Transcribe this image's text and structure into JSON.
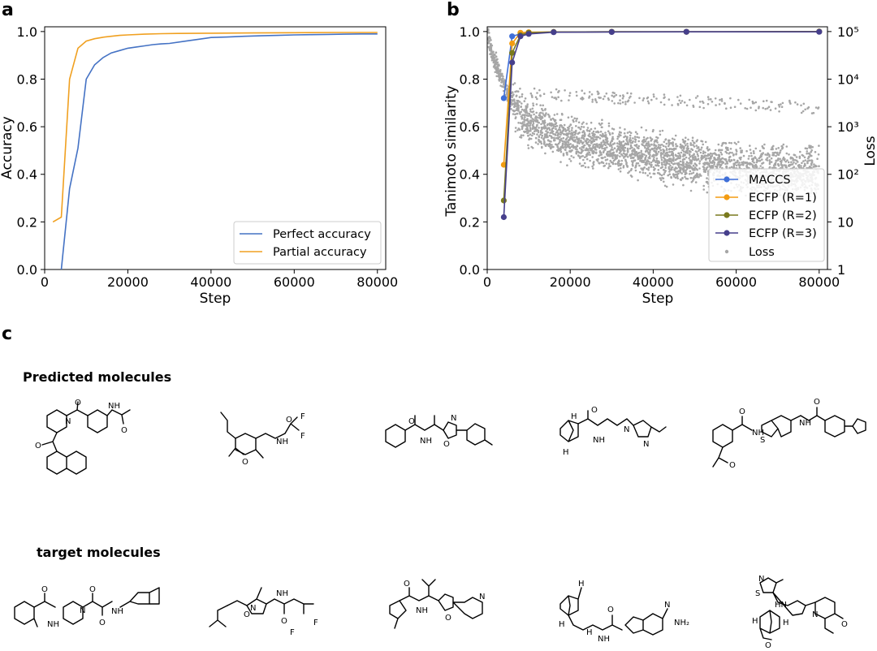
{
  "panel_labels": {
    "a": "a",
    "b": "b",
    "c": "c"
  },
  "chart_data": [
    {
      "type": "line",
      "xlabel": "Step",
      "ylabel": "Accuracy",
      "xlim": [
        0,
        82000
      ],
      "ylim": [
        0,
        1.02
      ],
      "xticks": [
        0,
        20000,
        40000,
        60000,
        80000
      ],
      "yticks": [
        0.0,
        0.2,
        0.4,
        0.6,
        0.8,
        1.0
      ],
      "xtick_labels": [
        "0",
        "20000",
        "40000",
        "60000",
        "80000"
      ],
      "ytick_labels": [
        "0.0",
        "0.2",
        "0.4",
        "0.6",
        "0.8",
        "1.0"
      ],
      "grid": false,
      "legend_position": "bottom-right",
      "series": [
        {
          "name": "Perfect accuracy",
          "color": "#4472c4",
          "x": [
            4000,
            6000,
            8000,
            10000,
            12000,
            14000,
            16000,
            18000,
            20000,
            22000,
            24000,
            26000,
            28000,
            30000,
            34000,
            38000,
            40000,
            44000,
            48000,
            52000,
            56000,
            60000,
            64000,
            68000,
            72000,
            76000,
            80000
          ],
          "y": [
            0.0,
            0.34,
            0.51,
            0.8,
            0.86,
            0.89,
            0.91,
            0.92,
            0.93,
            0.935,
            0.94,
            0.945,
            0.948,
            0.95,
            0.96,
            0.97,
            0.975,
            0.977,
            0.98,
            0.982,
            0.984,
            0.986,
            0.987,
            0.988,
            0.989,
            0.99,
            0.99
          ]
        },
        {
          "name": "Partial accuracy",
          "color": "#f0a020",
          "x": [
            2000,
            4000,
            6000,
            8000,
            10000,
            12000,
            14000,
            16000,
            18000,
            20000,
            24000,
            28000,
            32000,
            40000,
            50000,
            60000,
            70000,
            80000
          ],
          "y": [
            0.2,
            0.22,
            0.8,
            0.93,
            0.96,
            0.97,
            0.976,
            0.98,
            0.984,
            0.986,
            0.989,
            0.991,
            0.992,
            0.993,
            0.994,
            0.995,
            0.996,
            0.996
          ]
        }
      ]
    },
    {
      "type": "line",
      "xlabel": "Step",
      "ylabel": "Tanimoto similarity",
      "y2label": "Loss",
      "xlim": [
        0,
        82000
      ],
      "ylim": [
        0,
        1.02
      ],
      "y2_scale": "log",
      "y2lim": [
        1,
        100000
      ],
      "xticks": [
        0,
        20000,
        40000,
        60000,
        80000
      ],
      "yticks": [
        0.0,
        0.2,
        0.4,
        0.6,
        0.8,
        1.0
      ],
      "xtick_labels": [
        "0",
        "20000",
        "40000",
        "60000",
        "80000"
      ],
      "ytick_labels": [
        "0.0",
        "0.2",
        "0.4",
        "0.6",
        "0.8",
        "1.0"
      ],
      "y2ticks": [
        1,
        10,
        100,
        1000,
        10000,
        100000
      ],
      "y2tick_labels": [
        "1",
        "10",
        "10²",
        "10³",
        "10⁴",
        "10⁵"
      ],
      "grid": false,
      "legend_position": "lower-right",
      "series": [
        {
          "name": "MACCS",
          "color": "#3f6fd8",
          "x": [
            4000,
            6000,
            8000,
            10000,
            16000,
            30000,
            48000,
            80000
          ],
          "y": [
            0.72,
            0.98,
            0.99,
            0.995,
            0.998,
            0.999,
            0.999,
            1.0
          ]
        },
        {
          "name": "ECFP (R=1)",
          "color": "#f39c12",
          "x": [
            4000,
            6000,
            8000,
            10000,
            16000,
            30000,
            48000,
            80000
          ],
          "y": [
            0.44,
            0.95,
            0.995,
            0.997,
            0.998,
            0.999,
            0.999,
            1.0
          ]
        },
        {
          "name": "ECFP (R=2)",
          "color": "#7a7a1e",
          "x": [
            4000,
            6000,
            8000,
            10000,
            16000,
            30000,
            48000,
            80000
          ],
          "y": [
            0.29,
            0.91,
            0.985,
            0.995,
            0.998,
            0.999,
            0.999,
            1.0
          ]
        },
        {
          "name": "ECFP (R=3)",
          "color": "#463f8c",
          "x": [
            4000,
            6000,
            8000,
            10000,
            16000,
            30000,
            48000,
            80000
          ],
          "y": [
            0.22,
            0.87,
            0.98,
            0.99,
            0.997,
            0.998,
            0.999,
            0.999
          ]
        }
      ],
      "loss": {
        "name": "Loss",
        "color": "#a6a6a6",
        "axis": "right-log",
        "trend_steps": [
          0,
          1000,
          3000,
          6000,
          10000,
          20000,
          30000,
          40000,
          50000,
          60000,
          70000,
          80000
        ],
        "trend_median_loss": [
          100000,
          40000,
          12000,
          3000,
          1200,
          500,
          330,
          230,
          170,
          130,
          110,
          100
        ],
        "outlier_band_steps": [
          10000,
          80000
        ],
        "outlier_band_loss": [
          [
            5000,
            2500
          ],
          [
            600,
            300
          ]
        ]
      }
    }
  ],
  "section_c": {
    "predicted_title": "Predicted molecules",
    "target_title": "target molecules",
    "atom_labels": {
      "nh": "NH",
      "n": "N",
      "o": "O",
      "f": "F",
      "h": "H",
      "s": "S",
      "nh2": "NH₂",
      "hn": "HN"
    }
  }
}
